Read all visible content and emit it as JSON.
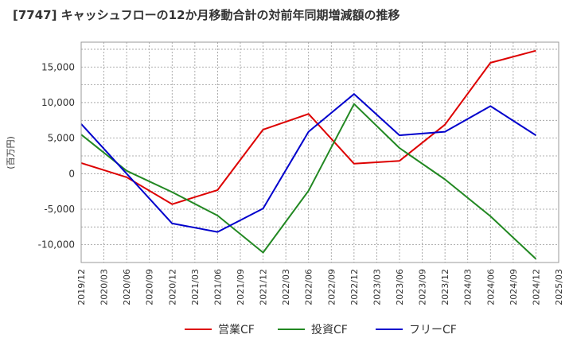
{
  "chart_data": {
    "type": "line",
    "title": "[7747]  キャッシュフローの12か月移動合計の対前年同期増減額の推移",
    "ylabel": "(百万円)",
    "xlabel": "",
    "ylim": [
      -12500,
      18500
    ],
    "yticks": [
      15000,
      10000,
      5000,
      0,
      -5000,
      -10000
    ],
    "ytick_labels": [
      "15,000",
      "10,000",
      "5,000",
      "0",
      "-5,000",
      "-10,000"
    ],
    "x": [
      "2019/12",
      "2020/03",
      "2020/06",
      "2020/09",
      "2020/12",
      "2021/03",
      "2021/06",
      "2021/09",
      "2021/12",
      "2022/03",
      "2022/06",
      "2022/09",
      "2022/12",
      "2023/03",
      "2023/06",
      "2023/09",
      "2023/12",
      "2024/03",
      "2024/06",
      "2024/09",
      "2024/12",
      "2025/03"
    ],
    "grid": true,
    "legend_position": "bottom",
    "series": [
      {
        "name": "営業CF",
        "color": "#dd0000",
        "x": [
          "2019/12",
          "2020/06",
          "2020/12",
          "2021/06",
          "2021/12",
          "2022/06",
          "2022/12",
          "2023/06",
          "2023/12",
          "2024/06",
          "2024/12"
        ],
        "values": [
          1500,
          -500,
          -4300,
          -2300,
          6200,
          8400,
          1400,
          1800,
          6900,
          15600,
          17300
        ]
      },
      {
        "name": "投資CF",
        "color": "#228822",
        "x": [
          "2019/12",
          "2020/06",
          "2020/12",
          "2021/06",
          "2021/12",
          "2022/06",
          "2022/12",
          "2023/06",
          "2023/12",
          "2024/06",
          "2024/12"
        ],
        "values": [
          5500,
          400,
          -2600,
          -5900,
          -11100,
          -2400,
          9800,
          3600,
          -800,
          -6000,
          -12000
        ]
      },
      {
        "name": "フリーCF",
        "color": "#0000cc",
        "x": [
          "2019/12",
          "2020/06",
          "2020/12",
          "2021/06",
          "2021/12",
          "2022/06",
          "2022/12",
          "2023/06",
          "2023/12",
          "2024/06",
          "2024/12"
        ],
        "values": [
          7000,
          0,
          -7000,
          -8200,
          -4900,
          5900,
          11200,
          5400,
          5900,
          9500,
          5400
        ]
      }
    ]
  }
}
